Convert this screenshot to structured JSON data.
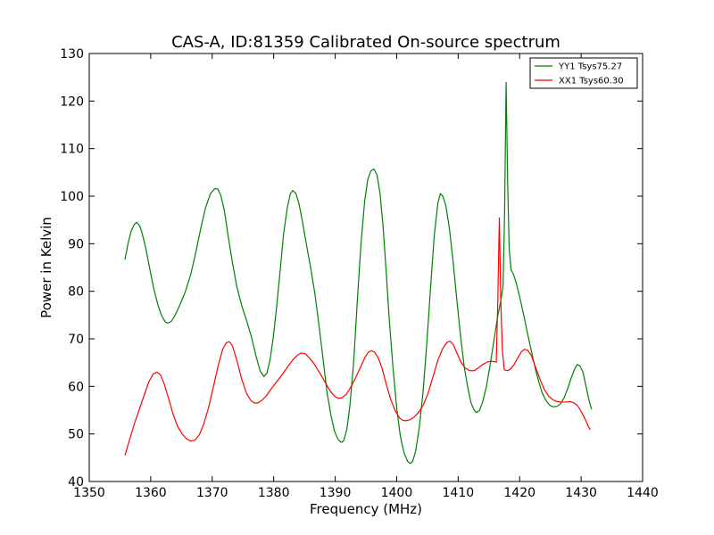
{
  "chart_data": {
    "type": "line",
    "title": "CAS-A, ID:81359 Calibrated On-source spectrum",
    "xlabel": "Frequency (MHz)",
    "ylabel": "Power in Kelvin",
    "xlim": [
      1350,
      1440
    ],
    "ylim": [
      40,
      130
    ],
    "xticks": [
      1350,
      1360,
      1370,
      1380,
      1390,
      1400,
      1410,
      1420,
      1430,
      1440
    ],
    "yticks": [
      40,
      50,
      60,
      70,
      80,
      90,
      100,
      110,
      120,
      130
    ],
    "grid": false,
    "legend_position": "top-right",
    "series": [
      {
        "name": "YY1 Tsys75.27",
        "color": "#008000",
        "points": [
          [
            1355.8,
            86.7
          ],
          [
            1356.3,
            90.0
          ],
          [
            1356.8,
            92.6
          ],
          [
            1357.3,
            94.0
          ],
          [
            1357.7,
            94.5
          ],
          [
            1358.2,
            93.8
          ],
          [
            1358.6,
            92.2
          ],
          [
            1359.2,
            89.0
          ],
          [
            1359.8,
            85.0
          ],
          [
            1360.5,
            80.5
          ],
          [
            1361.2,
            77.0
          ],
          [
            1361.8,
            74.8
          ],
          [
            1362.4,
            73.5
          ],
          [
            1362.8,
            73.3
          ],
          [
            1363.3,
            73.6
          ],
          [
            1363.9,
            74.8
          ],
          [
            1364.7,
            77.0
          ],
          [
            1365.6,
            79.8
          ],
          [
            1366.5,
            83.5
          ],
          [
            1367.3,
            88.0
          ],
          [
            1368.1,
            93.0
          ],
          [
            1368.9,
            97.5
          ],
          [
            1369.7,
            100.5
          ],
          [
            1370.4,
            101.6
          ],
          [
            1370.9,
            101.5
          ],
          [
            1371.4,
            100.2
          ],
          [
            1372.0,
            96.8
          ],
          [
            1372.6,
            91.5
          ],
          [
            1373.3,
            86.0
          ],
          [
            1374.0,
            81.0
          ],
          [
            1374.8,
            77.0
          ],
          [
            1375.6,
            73.8
          ],
          [
            1376.4,
            70.3
          ],
          [
            1377.1,
            66.5
          ],
          [
            1377.8,
            63.2
          ],
          [
            1378.4,
            62.1
          ],
          [
            1378.9,
            62.8
          ],
          [
            1379.4,
            65.6
          ],
          [
            1379.9,
            70.0
          ],
          [
            1380.5,
            77.0
          ],
          [
            1381.1,
            85.0
          ],
          [
            1381.6,
            92.0
          ],
          [
            1382.2,
            97.5
          ],
          [
            1382.7,
            100.5
          ],
          [
            1383.1,
            101.2
          ],
          [
            1383.6,
            100.6
          ],
          [
            1384.1,
            98.5
          ],
          [
            1384.7,
            94.5
          ],
          [
            1385.3,
            90.0
          ],
          [
            1386.0,
            85.0
          ],
          [
            1386.7,
            79.5
          ],
          [
            1387.4,
            72.5
          ],
          [
            1388.1,
            65.0
          ],
          [
            1388.7,
            58.5
          ],
          [
            1389.3,
            54.0
          ],
          [
            1389.9,
            50.5
          ],
          [
            1390.5,
            48.8
          ],
          [
            1391.0,
            48.2
          ],
          [
            1391.4,
            48.6
          ],
          [
            1391.9,
            51.0
          ],
          [
            1392.4,
            56.0
          ],
          [
            1393.0,
            65.0
          ],
          [
            1393.6,
            78.0
          ],
          [
            1394.2,
            90.0
          ],
          [
            1394.8,
            99.0
          ],
          [
            1395.3,
            103.5
          ],
          [
            1395.8,
            105.3
          ],
          [
            1396.3,
            105.7
          ],
          [
            1396.8,
            104.5
          ],
          [
            1397.3,
            100.5
          ],
          [
            1397.8,
            93.5
          ],
          [
            1398.3,
            84.0
          ],
          [
            1398.8,
            74.0
          ],
          [
            1399.4,
            64.0
          ],
          [
            1400.0,
            55.5
          ],
          [
            1400.6,
            49.5
          ],
          [
            1401.2,
            46.0
          ],
          [
            1401.8,
            44.2
          ],
          [
            1402.2,
            43.8
          ],
          [
            1402.6,
            44.2
          ],
          [
            1403.1,
            46.5
          ],
          [
            1403.7,
            51.5
          ],
          [
            1404.3,
            59.0
          ],
          [
            1404.9,
            69.0
          ],
          [
            1405.5,
            80.5
          ],
          [
            1406.1,
            91.5
          ],
          [
            1406.7,
            98.5
          ],
          [
            1407.1,
            100.5
          ],
          [
            1407.5,
            100.0
          ],
          [
            1408.0,
            98.0
          ],
          [
            1408.6,
            93.0
          ],
          [
            1409.2,
            86.0
          ],
          [
            1409.8,
            78.0
          ],
          [
            1410.4,
            70.5
          ],
          [
            1411.0,
            64.0
          ],
          [
            1411.6,
            59.5
          ],
          [
            1412.1,
            56.5
          ],
          [
            1412.6,
            55.0
          ],
          [
            1413.0,
            54.5
          ],
          [
            1413.5,
            55.0
          ],
          [
            1414.0,
            56.8
          ],
          [
            1414.6,
            60.0
          ],
          [
            1415.2,
            64.5
          ],
          [
            1415.8,
            69.5
          ],
          [
            1416.4,
            74.5
          ],
          [
            1417.0,
            78.5
          ],
          [
            1417.3,
            81.0
          ],
          [
            1417.55,
            96.0
          ],
          [
            1417.8,
            124.0
          ],
          [
            1418.05,
            103.0
          ],
          [
            1418.3,
            89.0
          ],
          [
            1418.6,
            84.5
          ],
          [
            1419.0,
            83.6
          ],
          [
            1419.5,
            81.5
          ],
          [
            1420.1,
            78.3
          ],
          [
            1420.7,
            74.8
          ],
          [
            1421.3,
            71.0
          ],
          [
            1421.9,
            67.5
          ],
          [
            1422.5,
            64.0
          ],
          [
            1423.1,
            61.0
          ],
          [
            1423.7,
            58.5
          ],
          [
            1424.3,
            57.0
          ],
          [
            1424.9,
            56.0
          ],
          [
            1425.5,
            55.7
          ],
          [
            1426.1,
            55.8
          ],
          [
            1426.6,
            56.3
          ],
          [
            1427.2,
            57.5
          ],
          [
            1427.8,
            59.5
          ],
          [
            1428.4,
            61.8
          ],
          [
            1429.0,
            63.8
          ],
          [
            1429.4,
            64.6
          ],
          [
            1429.8,
            64.3
          ],
          [
            1430.3,
            63.0
          ],
          [
            1430.8,
            60.0
          ],
          [
            1431.3,
            57.0
          ],
          [
            1431.7,
            55.2
          ]
        ]
      },
      {
        "name": "XX1 Tsys60.30",
        "color": "#ff0000",
        "points": [
          [
            1355.8,
            45.5
          ],
          [
            1356.5,
            48.5
          ],
          [
            1357.3,
            52.0
          ],
          [
            1358.1,
            55.0
          ],
          [
            1358.9,
            58.0
          ],
          [
            1359.7,
            61.0
          ],
          [
            1360.4,
            62.6
          ],
          [
            1361.0,
            63.0
          ],
          [
            1361.6,
            62.4
          ],
          [
            1362.2,
            60.5
          ],
          [
            1362.9,
            57.5
          ],
          [
            1363.6,
            54.3
          ],
          [
            1364.3,
            51.8
          ],
          [
            1365.1,
            50.0
          ],
          [
            1365.8,
            49.0
          ],
          [
            1366.5,
            48.5
          ],
          [
            1367.2,
            48.7
          ],
          [
            1367.9,
            49.8
          ],
          [
            1368.6,
            52.0
          ],
          [
            1369.4,
            55.5
          ],
          [
            1370.2,
            60.0
          ],
          [
            1371.0,
            64.5
          ],
          [
            1371.7,
            67.8
          ],
          [
            1372.3,
            69.2
          ],
          [
            1372.8,
            69.4
          ],
          [
            1373.3,
            68.5
          ],
          [
            1374.0,
            65.5
          ],
          [
            1374.8,
            61.5
          ],
          [
            1375.6,
            58.5
          ],
          [
            1376.3,
            57.0
          ],
          [
            1376.9,
            56.5
          ],
          [
            1377.4,
            56.5
          ],
          [
            1378.0,
            57.0
          ],
          [
            1378.8,
            58.0
          ],
          [
            1379.6,
            59.5
          ],
          [
            1380.5,
            61.0
          ],
          [
            1381.4,
            62.5
          ],
          [
            1382.3,
            64.2
          ],
          [
            1383.2,
            65.7
          ],
          [
            1383.9,
            66.6
          ],
          [
            1384.5,
            67.0
          ],
          [
            1385.1,
            66.9
          ],
          [
            1385.8,
            66.0
          ],
          [
            1386.6,
            64.7
          ],
          [
            1387.5,
            62.8
          ],
          [
            1388.4,
            60.8
          ],
          [
            1389.2,
            59.0
          ],
          [
            1389.9,
            57.9
          ],
          [
            1390.5,
            57.5
          ],
          [
            1391.1,
            57.6
          ],
          [
            1391.8,
            58.3
          ],
          [
            1392.6,
            60.0
          ],
          [
            1393.4,
            62.0
          ],
          [
            1394.1,
            64.0
          ],
          [
            1394.8,
            66.0
          ],
          [
            1395.4,
            67.2
          ],
          [
            1395.9,
            67.5
          ],
          [
            1396.4,
            67.2
          ],
          [
            1397.0,
            66.0
          ],
          [
            1397.7,
            63.5
          ],
          [
            1398.4,
            60.0
          ],
          [
            1399.1,
            57.0
          ],
          [
            1399.8,
            54.8
          ],
          [
            1400.5,
            53.3
          ],
          [
            1401.1,
            52.8
          ],
          [
            1401.6,
            52.8
          ],
          [
            1402.2,
            53.0
          ],
          [
            1402.9,
            53.6
          ],
          [
            1403.6,
            54.6
          ],
          [
            1404.3,
            56.0
          ],
          [
            1405.1,
            58.5
          ],
          [
            1405.9,
            62.0
          ],
          [
            1406.7,
            65.5
          ],
          [
            1407.5,
            68.0
          ],
          [
            1408.2,
            69.3
          ],
          [
            1408.7,
            69.5
          ],
          [
            1409.2,
            68.8
          ],
          [
            1409.8,
            67.0
          ],
          [
            1410.5,
            65.0
          ],
          [
            1411.2,
            63.8
          ],
          [
            1411.9,
            63.3
          ],
          [
            1412.6,
            63.3
          ],
          [
            1413.3,
            63.9
          ],
          [
            1414.0,
            64.6
          ],
          [
            1414.7,
            65.1
          ],
          [
            1415.3,
            65.3
          ],
          [
            1415.9,
            65.2
          ],
          [
            1416.2,
            65.1
          ],
          [
            1416.45,
            78.0
          ],
          [
            1416.7,
            95.5
          ],
          [
            1416.95,
            77.0
          ],
          [
            1417.2,
            67.5
          ],
          [
            1417.5,
            63.5
          ],
          [
            1418.0,
            63.3
          ],
          [
            1418.5,
            63.6
          ],
          [
            1419.1,
            64.6
          ],
          [
            1419.7,
            66.0
          ],
          [
            1420.3,
            67.3
          ],
          [
            1420.8,
            67.8
          ],
          [
            1421.3,
            67.6
          ],
          [
            1421.9,
            66.5
          ],
          [
            1422.6,
            64.0
          ],
          [
            1423.3,
            61.5
          ],
          [
            1424.0,
            59.4
          ],
          [
            1424.7,
            58.0
          ],
          [
            1425.4,
            57.2
          ],
          [
            1426.1,
            56.8
          ],
          [
            1426.8,
            56.7
          ],
          [
            1427.5,
            56.7
          ],
          [
            1428.2,
            56.8
          ],
          [
            1428.9,
            56.5
          ],
          [
            1429.5,
            55.8
          ],
          [
            1430.1,
            54.5
          ],
          [
            1430.7,
            53.0
          ],
          [
            1431.2,
            51.5
          ],
          [
            1431.5,
            50.9
          ]
        ]
      }
    ]
  }
}
